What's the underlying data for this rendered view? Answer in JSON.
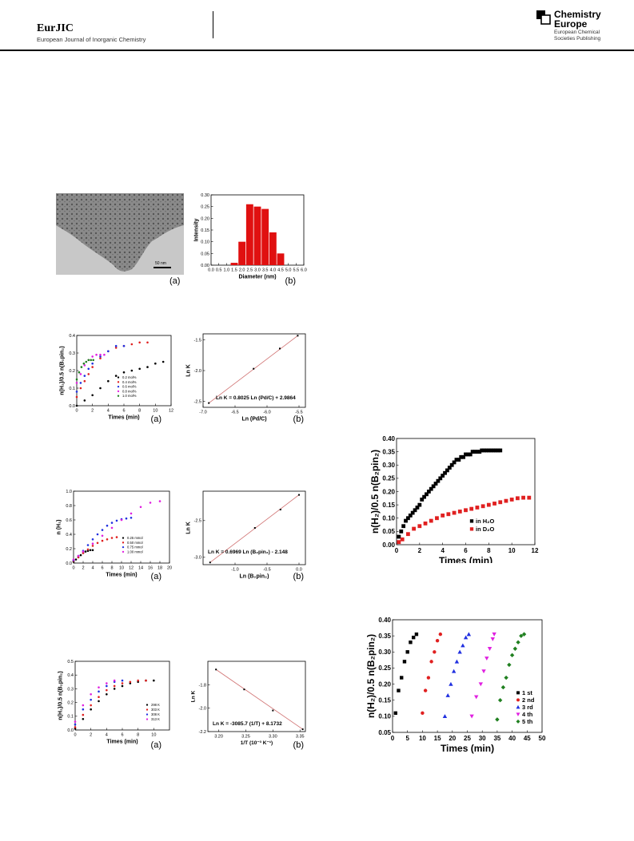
{
  "header": {
    "journal": "EurJIC",
    "journal_full": "European Journal of Inorganic Chemistry",
    "brand_line1": "Chemistry",
    "brand_line2": "Europe",
    "brand_sub1": "European Chemical",
    "brand_sub2": "Societies Publishing"
  },
  "tem": {
    "scale_label": "50 nm",
    "panel": "(a)"
  },
  "chart_data": [
    {
      "type": "bar",
      "panel": "(b)",
      "ylabel": "Intensity",
      "xlabel": "Diameter (nm)",
      "categories": [
        1.5,
        2.0,
        2.5,
        3.0,
        3.5,
        4.0,
        4.5
      ],
      "values": [
        0.01,
        0.1,
        0.26,
        0.25,
        0.24,
        0.14,
        0.05
      ],
      "xlim": [
        0,
        6
      ],
      "ylim": [
        0,
        0.3
      ],
      "xticks": [
        "0.0",
        "0.5",
        "1.0",
        "1.5",
        "2.0",
        "2.5",
        "3.0",
        "3.5",
        "4.0",
        "4.5",
        "5.0",
        "5.5",
        "6.0"
      ],
      "yticks": [
        "0.00",
        "0.05",
        "0.10",
        "0.15",
        "0.20",
        "0.25",
        "0.30"
      ],
      "color": "#e01010"
    },
    {
      "type": "scatter",
      "panel": "(a)",
      "xlabel": "Times (min)",
      "ylabel": "n(H₂)/0.5 n(B₂pin₂)",
      "xlim": [
        0,
        12
      ],
      "ylim": [
        0,
        0.4
      ],
      "xticks": [
        "0",
        "2",
        "4",
        "6",
        "8",
        "10",
        "12"
      ],
      "yticks": [
        "0.0",
        "0.1",
        "0.2",
        "0.3",
        "0.4"
      ],
      "series": [
        {
          "name": "0.2 mol%",
          "color": "#000000",
          "x": [
            0,
            1,
            2,
            3,
            4,
            5,
            6,
            7,
            8,
            9,
            10,
            11
          ],
          "y": [
            0,
            0.03,
            0.06,
            0.1,
            0.14,
            0.17,
            0.19,
            0.2,
            0.21,
            0.22,
            0.24,
            0.25
          ]
        },
        {
          "name": "0.4 mol%",
          "color": "#e02020",
          "x": [
            0,
            0.5,
            1,
            1.5,
            2,
            3,
            4,
            5,
            6,
            7,
            8,
            9
          ],
          "y": [
            0.05,
            0.1,
            0.14,
            0.18,
            0.22,
            0.27,
            0.31,
            0.33,
            0.34,
            0.35,
            0.36,
            0.36
          ]
        },
        {
          "name": "0.6 mol%",
          "color": "#2030e0",
          "x": [
            0,
            0.5,
            1,
            1.5,
            2,
            3,
            4,
            5,
            6
          ],
          "y": [
            0.08,
            0.13,
            0.17,
            0.21,
            0.24,
            0.28,
            0.31,
            0.34,
            0.34
          ]
        },
        {
          "name": "0.8 mol%",
          "color": "#e020e0",
          "x": [
            0,
            0.5,
            1,
            1.5,
            2,
            2.5,
            3,
            3.5
          ],
          "y": [
            0.13,
            0.18,
            0.23,
            0.26,
            0.28,
            0.29,
            0.29,
            0.29
          ]
        },
        {
          "name": "1.0 mol%",
          "color": "#208020",
          "x": [
            0,
            0.3,
            0.6,
            0.9,
            1.2,
            1.5,
            1.8,
            2.1
          ],
          "y": [
            0.15,
            0.19,
            0.22,
            0.24,
            0.25,
            0.26,
            0.26,
            0.26
          ]
        }
      ]
    },
    {
      "type": "scatter",
      "panel": "(b)",
      "xlabel": "Ln (Pd/C)",
      "ylabel": "Ln K",
      "xlim": [
        -7,
        -5.4
      ],
      "ylim": [
        -2.6,
        -1.4
      ],
      "xticks": [
        "-7.0",
        "-6.5",
        "-6.0",
        "-5.5"
      ],
      "yticks": [
        "-2.5",
        "-2.0",
        "-1.5"
      ],
      "x": [
        -6.91,
        -6.21,
        -5.8,
        -5.52
      ],
      "y": [
        -2.53,
        -1.97,
        -1.64,
        -1.43
      ],
      "fit_equation": "Ln K = 0.8025 Ln (Pd/C) + 2.9864"
    },
    {
      "type": "scatter",
      "panel": "(a)",
      "xlabel": "Times (min)",
      "ylabel": "n (H₂)",
      "xlim": [
        0,
        20
      ],
      "ylim": [
        0,
        1.0
      ],
      "xticks": [
        "0",
        "2",
        "4",
        "6",
        "8",
        "10",
        "12",
        "14",
        "16",
        "18",
        "20"
      ],
      "yticks": [
        "0.0",
        "0.2",
        "0.4",
        "0.6",
        "0.8",
        "1.0"
      ],
      "series": [
        {
          "name": "0.25 mmol",
          "color": "#000000",
          "x": [
            0,
            0.5,
            1,
            1.5,
            2,
            2.5,
            3,
            3.5,
            4
          ],
          "y": [
            0.02,
            0.05,
            0.08,
            0.11,
            0.14,
            0.16,
            0.17,
            0.18,
            0.18
          ]
        },
        {
          "name": "0.50 mmol",
          "color": "#e02020",
          "x": [
            0,
            1,
            2,
            3,
            4,
            5,
            6,
            7,
            8,
            9
          ],
          "y": [
            0.03,
            0.08,
            0.14,
            0.19,
            0.24,
            0.28,
            0.31,
            0.33,
            0.35,
            0.36
          ]
        },
        {
          "name": "0.75 mmol",
          "color": "#2030e0",
          "x": [
            0,
            1,
            2,
            3,
            4,
            5,
            6,
            7,
            8,
            9,
            10,
            11,
            12
          ],
          "y": [
            0.04,
            0.1,
            0.17,
            0.25,
            0.33,
            0.4,
            0.46,
            0.52,
            0.56,
            0.59,
            0.61,
            0.62,
            0.63
          ]
        },
        {
          "name": "1.00 mmol",
          "color": "#e020e0",
          "x": [
            0,
            1,
            2,
            4,
            6,
            8,
            10,
            12,
            14,
            16,
            18
          ],
          "y": [
            0.05,
            0.1,
            0.16,
            0.27,
            0.38,
            0.49,
            0.6,
            0.69,
            0.78,
            0.84,
            0.86
          ]
        }
      ]
    },
    {
      "type": "scatter",
      "panel": "(b)",
      "xlabel": "Ln (B₂pin₂)",
      "ylabel": "Ln K",
      "xlim": [
        -1.5,
        0.1
      ],
      "ylim": [
        -3.1,
        -2.1
      ],
      "xticks": [
        "-1.0",
        "-0.5",
        "0.0"
      ],
      "yticks": [
        "-3.0",
        "-2.5"
      ],
      "x": [
        -1.39,
        -0.69,
        -0.29,
        0.0
      ],
      "y": [
        -3.07,
        -2.6,
        -2.35,
        -2.15
      ],
      "fit_equation": "Ln K = 0.6969 Ln (B₂pin₂) - 2.148"
    },
    {
      "type": "scatter",
      "panel": "(a)",
      "xlabel": "Times (min)",
      "ylabel": "n(H₂)/0.5 n(B₂pin₂)",
      "xlim": [
        0,
        12
      ],
      "ylim": [
        0,
        0.5
      ],
      "xticks": [
        "0",
        "2",
        "4",
        "6",
        "8",
        "10"
      ],
      "yticks": [
        "0.0",
        "0.1",
        "0.2",
        "0.3",
        "0.4",
        "0.5"
      ],
      "series": [
        {
          "name": "298 K",
          "color": "#000000",
          "x": [
            0,
            1,
            2,
            3,
            4,
            5,
            6,
            7,
            8,
            9,
            10
          ],
          "y": [
            0.01,
            0.08,
            0.15,
            0.21,
            0.26,
            0.3,
            0.32,
            0.34,
            0.35,
            0.36,
            0.36
          ]
        },
        {
          "name": "303 K",
          "color": "#e02020",
          "x": [
            0,
            1,
            2,
            3,
            4,
            5,
            6,
            7,
            8,
            9
          ],
          "y": [
            0.02,
            0.11,
            0.18,
            0.24,
            0.29,
            0.32,
            0.34,
            0.35,
            0.36,
            0.36
          ]
        },
        {
          "name": "308 K",
          "color": "#2030e0",
          "x": [
            0,
            1,
            2,
            3,
            4,
            5,
            6
          ],
          "y": [
            0.04,
            0.15,
            0.22,
            0.28,
            0.32,
            0.35,
            0.36
          ]
        },
        {
          "name": "313 K",
          "color": "#e020e0",
          "x": [
            0,
            1,
            2,
            3,
            4,
            5
          ],
          "y": [
            0.06,
            0.18,
            0.26,
            0.31,
            0.34,
            0.36
          ]
        }
      ]
    },
    {
      "type": "scatter",
      "panel": "(b)",
      "xlabel": "1/T (10⁻³ K⁻¹)",
      "ylabel": "Ln K",
      "xlim": [
        3.18,
        3.36
      ],
      "ylim": [
        -2.2,
        -1.6
      ],
      "xticks": [
        "3.20",
        "3.25",
        "3.30",
        "3.35"
      ],
      "yticks": [
        "-1.8",
        "-2.0",
        "-2.2"
      ],
      "x": [
        3.195,
        3.247,
        3.3,
        3.355
      ],
      "y": [
        -1.67,
        -1.84,
        -2.02,
        -2.18
      ],
      "fit_equation": "Ln K = -3085.7 (1/T) + 8.1732"
    },
    {
      "type": "scatter",
      "xlabel": "Times (min)",
      "ylabel": "n(H₂)/0.5 n(B₂pin₂)",
      "xlim": [
        0,
        12
      ],
      "ylim": [
        0,
        0.4
      ],
      "xticks": [
        "0",
        "2",
        "4",
        "6",
        "8",
        "10",
        "12"
      ],
      "yticks": [
        "0.00",
        "0.05",
        "0.10",
        "0.15",
        "0.20",
        "0.25",
        "0.30",
        "0.35",
        "0.40"
      ],
      "series": [
        {
          "name": "in H₂O",
          "color": "#000000",
          "x": [
            0.2,
            0.4,
            0.6,
            0.8,
            1,
            1.2,
            1.4,
            1.6,
            1.8,
            2,
            2.2,
            2.4,
            2.6,
            2.8,
            3,
            3.2,
            3.4,
            3.6,
            3.8,
            4,
            4.2,
            4.4,
            4.6,
            4.8,
            5,
            5.2,
            5.4,
            5.6,
            5.8,
            6,
            6.2,
            6.4,
            6.6,
            6.8,
            7,
            7.2,
            7.4,
            7.6,
            7.8,
            8,
            8.2,
            8.4,
            8.6,
            8.8,
            9
          ],
          "y": [
            0.03,
            0.05,
            0.07,
            0.09,
            0.1,
            0.11,
            0.12,
            0.13,
            0.14,
            0.15,
            0.17,
            0.18,
            0.19,
            0.2,
            0.21,
            0.22,
            0.23,
            0.24,
            0.25,
            0.26,
            0.27,
            0.28,
            0.29,
            0.3,
            0.31,
            0.32,
            0.32,
            0.33,
            0.33,
            0.34,
            0.34,
            0.34,
            0.35,
            0.35,
            0.35,
            0.35,
            0.355,
            0.355,
            0.355,
            0.355,
            0.355,
            0.355,
            0.355,
            0.355,
            0.355
          ]
        },
        {
          "name": "in D₂O",
          "color": "#e02020",
          "x": [
            0.2,
            0.5,
            1,
            1.5,
            2,
            2.5,
            3,
            3.5,
            4,
            4.5,
            5,
            5.5,
            6,
            6.5,
            7,
            7.5,
            8,
            8.5,
            9,
            9.5,
            10,
            10.5,
            11,
            11.5
          ],
          "y": [
            0.01,
            0.02,
            0.04,
            0.06,
            0.07,
            0.08,
            0.09,
            0.1,
            0.11,
            0.115,
            0.12,
            0.125,
            0.13,
            0.135,
            0.14,
            0.145,
            0.15,
            0.155,
            0.16,
            0.165,
            0.17,
            0.175,
            0.177,
            0.177
          ]
        }
      ]
    },
    {
      "type": "scatter",
      "xlabel": "Times (min)",
      "ylabel": "n(H₂)/0.5 n(B₂pin₂)",
      "xlim": [
        0,
        50
      ],
      "ylim": [
        0.05,
        0.4
      ],
      "xticks": [
        "0",
        "5",
        "10",
        "15",
        "20",
        "25",
        "30",
        "35",
        "40",
        "45",
        "50"
      ],
      "yticks": [
        "0.05",
        "0.10",
        "0.15",
        "0.20",
        "0.25",
        "0.30",
        "0.35",
        "0.40"
      ],
      "series": [
        {
          "name": "1 st",
          "color": "#000000",
          "marker": "square",
          "x": [
            1,
            2,
            3,
            4,
            5,
            6,
            7,
            8
          ],
          "y": [
            0.11,
            0.18,
            0.22,
            0.27,
            0.3,
            0.33,
            0.345,
            0.355
          ]
        },
        {
          "name": "2 nd",
          "color": "#e02020",
          "marker": "circle",
          "x": [
            10,
            11,
            12,
            13,
            14,
            15,
            16
          ],
          "y": [
            0.11,
            0.18,
            0.22,
            0.27,
            0.3,
            0.335,
            0.355
          ]
        },
        {
          "name": "3 rd",
          "color": "#2030e0",
          "marker": "triangle",
          "x": [
            17.5,
            18.5,
            19.5,
            20.5,
            21.5,
            22.5,
            23.5,
            24.5,
            25.5
          ],
          "y": [
            0.1,
            0.165,
            0.2,
            0.24,
            0.27,
            0.3,
            0.32,
            0.345,
            0.355
          ]
        },
        {
          "name": "4 th",
          "color": "#e020e0",
          "marker": "triangle-down",
          "x": [
            26.5,
            28,
            29.5,
            30.5,
            31.5,
            32.5,
            33.5,
            34
          ],
          "y": [
            0.1,
            0.16,
            0.2,
            0.24,
            0.28,
            0.31,
            0.34,
            0.355
          ]
        },
        {
          "name": "5 th",
          "color": "#208020",
          "marker": "diamond",
          "x": [
            35,
            36,
            37,
            38,
            39,
            40,
            41,
            42,
            43,
            44
          ],
          "y": [
            0.09,
            0.15,
            0.19,
            0.22,
            0.26,
            0.29,
            0.31,
            0.33,
            0.35,
            0.355
          ]
        }
      ]
    }
  ]
}
